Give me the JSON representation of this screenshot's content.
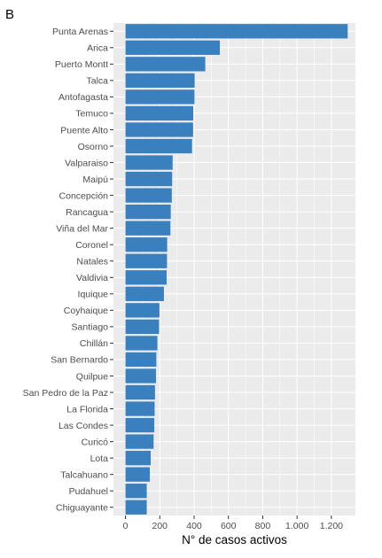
{
  "panel_tag": "B",
  "chart_data": {
    "type": "bar",
    "orientation": "horizontal",
    "title": "",
    "xlabel": "N° de casos activos",
    "ylabel": "",
    "categories": [
      "Punta Arenas",
      "Arica",
      "Puerto Montt",
      "Talca",
      "Antofagasta",
      "Temuco",
      "Puente Alto",
      "Osorno",
      "Valparaiso",
      "Maipú",
      "Concepción",
      "Rancagua",
      "Viña del Mar",
      "Coronel",
      "Natales",
      "Valdivia",
      "Iquique",
      "Coyhaique",
      "Santiago",
      "Chillán",
      "San Bernardo",
      "Quilpue",
      "San Pedro de la Paz",
      "La Florida",
      "Las Condes",
      "Curicó",
      "Lota",
      "Talcahuano",
      "Pudahuel",
      "Chiguayante"
    ],
    "values": [
      1295,
      550,
      465,
      403,
      402,
      395,
      394,
      388,
      275,
      272,
      270,
      264,
      262,
      243,
      242,
      240,
      224,
      198,
      196,
      186,
      180,
      178,
      172,
      170,
      168,
      164,
      147,
      142,
      124,
      124
    ],
    "xlim": [
      -70,
      1340
    ],
    "xticks": [
      0,
      200,
      400,
      600,
      800,
      1000,
      1200
    ],
    "xtick_labels": [
      "0",
      "200",
      "400",
      "600",
      "800",
      "1.000",
      "1.200"
    ],
    "grid": true,
    "bar_color": "#3a80bf",
    "panel_bg": "#ebebeb",
    "grid_color": "#ffffff"
  }
}
